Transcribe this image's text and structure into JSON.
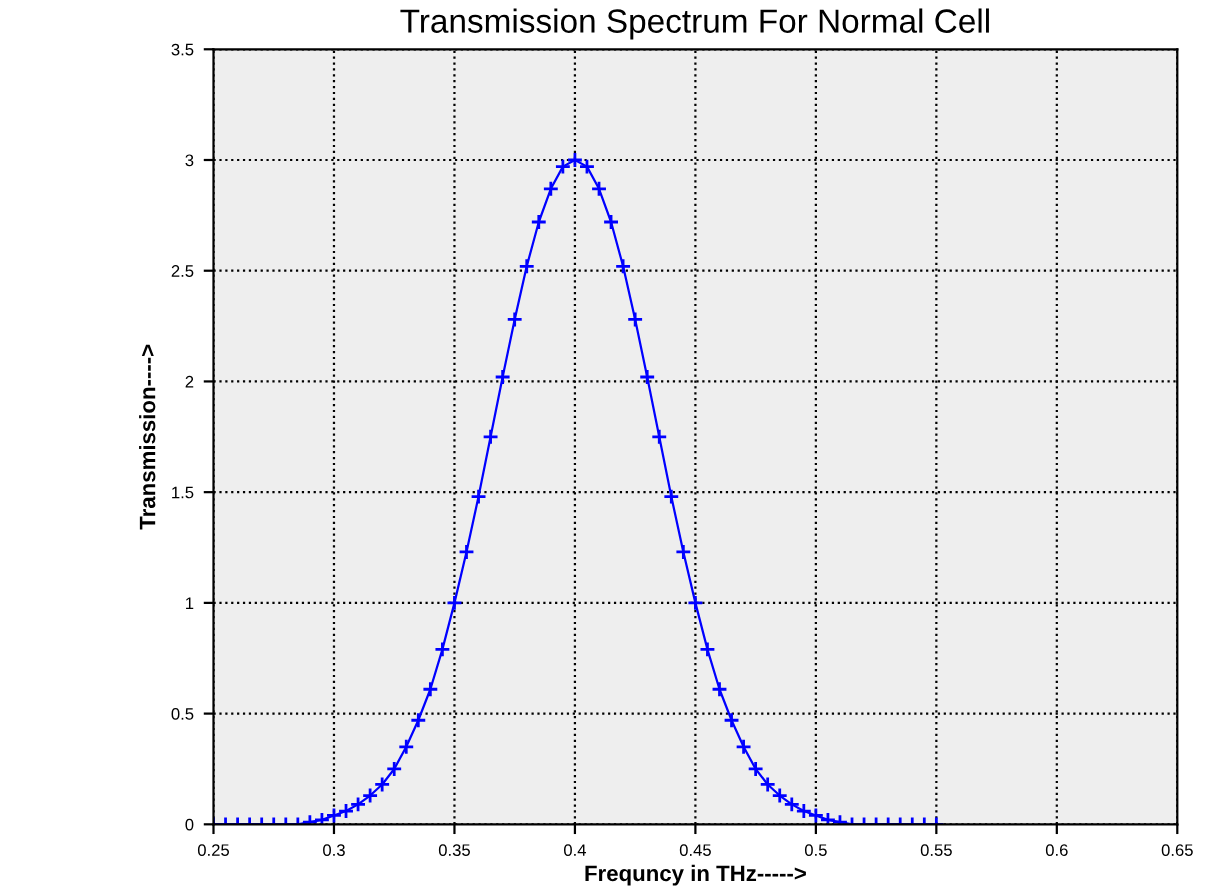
{
  "chart_data": {
    "type": "line",
    "title": "Transmission Spectrum For Normal Cell",
    "xlabel": "Frequncy in THz----->",
    "ylabel": "Transmission---->",
    "x": [
      0.25,
      0.255,
      0.26,
      0.265,
      0.27,
      0.275,
      0.28,
      0.285,
      0.29,
      0.295,
      0.3,
      0.305,
      0.31,
      0.315,
      0.32,
      0.325,
      0.33,
      0.335,
      0.34,
      0.345,
      0.35,
      0.355,
      0.36,
      0.365,
      0.37,
      0.375,
      0.38,
      0.385,
      0.39,
      0.395,
      0.4,
      0.405,
      0.41,
      0.415,
      0.42,
      0.425,
      0.43,
      0.435,
      0.44,
      0.445,
      0.45,
      0.455,
      0.46,
      0.465,
      0.47,
      0.475,
      0.48,
      0.485,
      0.49,
      0.495,
      0.5,
      0.505,
      0.51,
      0.515,
      0.52,
      0.525,
      0.53,
      0.535,
      0.54,
      0.545,
      0.55
    ],
    "series": [
      {
        "color": "#0000ff",
        "values": [
          0,
          0,
          0,
          0,
          0,
          0,
          0,
          0,
          0.01,
          0.02,
          0.04,
          0.06,
          0.09,
          0.13,
          0.18,
          0.25,
          0.35,
          0.47,
          0.61,
          0.79,
          1.0,
          1.23,
          1.48,
          1.75,
          2.02,
          2.28,
          2.52,
          2.72,
          2.87,
          2.97,
          3.0,
          2.97,
          2.87,
          2.72,
          2.52,
          2.28,
          2.02,
          1.75,
          1.48,
          1.23,
          1.0,
          0.79,
          0.61,
          0.47,
          0.35,
          0.25,
          0.18,
          0.13,
          0.09,
          0.06,
          0.04,
          0.02,
          0.01,
          0,
          0,
          0,
          0,
          0,
          0,
          0,
          0
        ]
      }
    ],
    "xlim": [
      0.25,
      0.65
    ],
    "xticks": [
      0.25,
      0.3,
      0.35,
      0.4,
      0.45,
      0.5,
      0.55,
      0.6,
      0.65
    ],
    "ylim": [
      0,
      3.5
    ],
    "yticks": [
      0,
      0.5,
      1,
      1.5,
      2,
      2.5,
      3,
      3.5
    ],
    "grid": true,
    "marker": "cross",
    "line_style": "solid"
  }
}
